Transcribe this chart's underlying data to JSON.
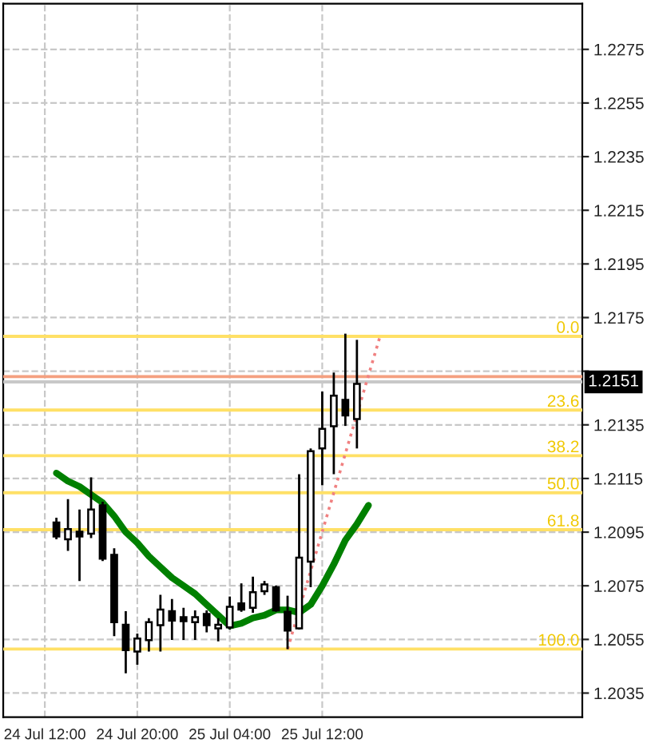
{
  "chart_data": {
    "type": "candlestick",
    "categories": [
      "24 Jul 12:00",
      null,
      null,
      null,
      null,
      null,
      null,
      null,
      "24 Jul 20:00",
      null,
      null,
      null,
      null,
      null,
      null,
      null,
      "25 Jul 04:00",
      null,
      null,
      null,
      null,
      null,
      null,
      null,
      "25 Jul 12:00",
      null,
      null,
      null,
      null,
      null,
      null,
      null,
      null,
      null,
      null,
      null,
      null,
      null,
      null,
      null,
      null,
      null,
      null,
      null,
      null,
      null,
      null
    ],
    "ohlc": [
      null,
      [
        1.20986,
        1.21004,
        1.20923,
        1.20934
      ],
      [
        1.20923,
        1.21073,
        1.2088,
        1.20961
      ],
      [
        1.20952,
        1.21034,
        1.20768,
        1.20934
      ],
      [
        1.20944,
        1.21154,
        1.20928,
        1.21034
      ],
      [
        1.2105,
        1.21063,
        1.20842,
        1.20851
      ],
      [
        1.20865,
        1.2089,
        1.20562,
        1.20614
      ],
      [
        1.20605,
        1.20655,
        1.20424,
        1.2051
      ],
      [
        1.20505,
        1.20572,
        1.20456,
        1.20553
      ],
      [
        1.20547,
        1.20629,
        1.20505,
        1.20614
      ],
      [
        1.20603,
        1.20716,
        1.20505,
        1.20661
      ],
      [
        1.20655,
        1.20701,
        1.20548,
        1.2062
      ],
      [
        1.20633,
        1.20668,
        1.20548,
        1.20618
      ],
      [
        1.20614,
        1.20658,
        1.20548,
        1.20633
      ],
      [
        1.20645,
        1.20658,
        1.20576,
        1.20603
      ],
      [
        1.20591,
        1.20629,
        1.20543,
        1.20605
      ],
      [
        1.20595,
        1.2071,
        1.20587,
        1.20672
      ],
      [
        1.20684,
        1.20759,
        1.20653,
        1.20661
      ],
      [
        1.20668,
        1.20784,
        1.20649,
        1.20726
      ],
      [
        1.2073,
        1.20768,
        1.20716,
        1.20755
      ],
      [
        1.20745,
        1.20751,
        1.20653,
        1.20658
      ],
      [
        1.20653,
        1.20713,
        1.20514,
        1.20583
      ],
      [
        1.20591,
        1.21166,
        1.20587,
        1.20855
      ],
      [
        1.2084,
        1.21262,
        1.20745,
        1.21252
      ],
      [
        1.21262,
        1.21474,
        1.21125,
        1.21335
      ],
      [
        1.21345,
        1.21545,
        1.21166,
        1.21459
      ],
      [
        1.21443,
        1.2169,
        1.21346,
        1.21385
      ],
      [
        1.21372,
        1.21667,
        1.21262,
        1.21503
      ],
      null,
      null,
      null,
      null,
      null,
      null,
      null,
      null,
      null,
      null,
      null,
      null,
      null,
      null,
      null,
      null,
      null,
      null,
      null
    ],
    "series": [
      {
        "type": "line",
        "color": "#008000",
        "values": [
          null,
          1.2117,
          1.2114,
          1.2112,
          1.2109,
          1.2106,
          1.2101,
          1.2095,
          1.2091,
          1.2086,
          1.2082,
          1.2078,
          1.2075,
          1.2072,
          1.2068,
          1.2064,
          1.206,
          1.2061,
          1.2063,
          1.2064,
          1.2066,
          1.2066,
          1.2065,
          1.2068,
          1.2075,
          1.2083,
          1.2092,
          1.2098,
          1.2105,
          null,
          null,
          null,
          null,
          null,
          null,
          null,
          null,
          null,
          null,
          null,
          null,
          null,
          null,
          null,
          null,
          null,
          null
        ]
      },
      {
        "type": "line",
        "color": "#f08080",
        "line_style": "dotted",
        "values": [
          null,
          null,
          null,
          null,
          null,
          null,
          null,
          null,
          null,
          null,
          null,
          null,
          null,
          null,
          null,
          null,
          null,
          null,
          null,
          null,
          null,
          1.20514,
          null,
          null,
          null,
          null,
          null,
          null,
          null,
          1.2168,
          null,
          null,
          null,
          null,
          null,
          null,
          null,
          null,
          null,
          null,
          null,
          null,
          null,
          null,
          null,
          null,
          null
        ]
      }
    ],
    "ylim": [
      1.2026,
      1.2292
    ],
    "yticks": [
      {
        "value": 1.2035,
        "label": "1.2035"
      },
      {
        "value": 1.2055,
        "label": "1.2055"
      },
      {
        "value": 1.2075,
        "label": "1.2075"
      },
      {
        "value": 1.2095,
        "label": "1.2095"
      },
      {
        "value": 1.2115,
        "label": "1.2115"
      },
      {
        "value": 1.2135,
        "label": "1.2135"
      },
      {
        "value": 1.2155,
        "label": null
      },
      {
        "value": 1.2175,
        "label": "1.2175"
      },
      {
        "value": 1.2195,
        "label": "1.2195"
      },
      {
        "value": 1.2215,
        "label": "1.2215"
      },
      {
        "value": 1.2235,
        "label": "1.2235"
      },
      {
        "value": 1.2255,
        "label": "1.2255"
      },
      {
        "value": 1.2275,
        "label": "1.2275"
      }
    ],
    "grid": true,
    "ref_lines": [
      {
        "axis": "y",
        "value": 1.2153,
        "color": "#f4a080"
      },
      {
        "axis": "y",
        "value": 1.2151,
        "label": "1.2151",
        "color": "#c8c8c8"
      },
      {
        "axis": "y",
        "value": 1.2168,
        "color": "#ffe066",
        "line_style": "solid"
      },
      {
        "axis": "y",
        "value": 1.21405,
        "color": "#ffe066",
        "line_style": "solid"
      },
      {
        "axis": "y",
        "value": 1.21235,
        "color": "#ffe066",
        "line_style": "solid"
      },
      {
        "axis": "y",
        "value": 1.21097,
        "color": "#ffe066",
        "line_style": "solid"
      },
      {
        "axis": "y",
        "value": 1.20959,
        "color": "#ffe066",
        "line_style": "solid"
      },
      {
        "axis": "y",
        "value": 1.20514,
        "color": "#ffe066",
        "line_style": "solid"
      }
    ],
    "annotations": [
      {
        "text": "0.0",
        "y": 1.2168
      },
      {
        "text": "23.6",
        "y": 1.21405
      },
      {
        "text": "38.2",
        "y": 1.21235
      },
      {
        "text": "50.0",
        "y": 1.21097
      },
      {
        "text": "61.8",
        "y": 1.20959
      },
      {
        "text": "100.0",
        "y": 1.20514
      }
    ]
  }
}
